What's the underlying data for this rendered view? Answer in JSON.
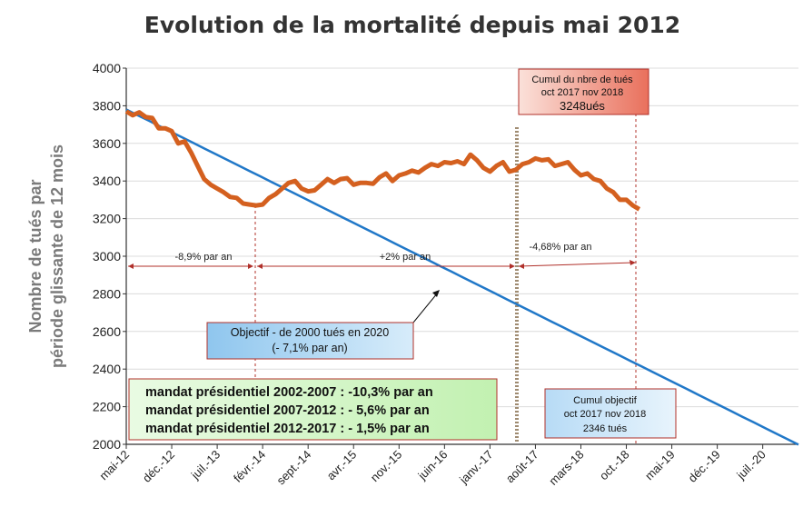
{
  "chart_data": {
    "type": "line",
    "title": "Evolution de la mortalité depuis mai 2012",
    "ylabel_lines": [
      "Nombre de tués par",
      "période  glissante de 12 mois"
    ],
    "xlabel": "",
    "ylim": [
      2000,
      4000
    ],
    "yticks": [
      2000,
      2200,
      2400,
      2600,
      2800,
      3000,
      3200,
      3400,
      3600,
      3800,
      4000
    ],
    "x_tick_labels": [
      "mai-12",
      "déc.-12",
      "juil.-13",
      "févr.-14",
      "sept.-14",
      "avr.-15",
      "nov.-15",
      "juin-16",
      "janv.-17",
      "août-17",
      "mars-18",
      "oct.-18",
      "mai-19",
      "déc.-19",
      "juil.-20"
    ],
    "grid": true,
    "colors": {
      "actual": "#d4601f",
      "objective": "#2178c8",
      "divider": "#a08c72",
      "marker": "#b0302a"
    },
    "series": [
      {
        "key": "actual",
        "start": "mai-12",
        "values": [
          3770,
          3750,
          3765,
          3740,
          3735,
          3680,
          3680,
          3665,
          3600,
          3610,
          3550,
          3480,
          3410,
          3380,
          3360,
          3340,
          3315,
          3310,
          3280,
          3275,
          3270,
          3275,
          3310,
          3330,
          3360,
          3390,
          3400,
          3360,
          3345,
          3350,
          3380,
          3410,
          3390,
          3410,
          3415,
          3380,
          3390,
          3390,
          3385,
          3420,
          3440,
          3400,
          3430,
          3440,
          3455,
          3445,
          3470,
          3490,
          3480,
          3500,
          3495,
          3505,
          3490,
          3540,
          3510,
          3470,
          3450,
          3480,
          3500,
          3450,
          3460,
          3490,
          3500,
          3520,
          3510,
          3515,
          3480,
          3490,
          3500,
          3460,
          3430,
          3440,
          3410,
          3400,
          3360,
          3340,
          3300,
          3300,
          3270,
          3250
        ]
      },
      {
        "key": "objective",
        "start": "mai-12",
        "values": [
          3780,
          1998
        ],
        "end": "déc.-20"
      }
    ],
    "annotations": {
      "pct1": "-8,9% par an",
      "pct2": "+2% par an",
      "pct3": "-4,68% par an",
      "objectif_line1": "Objectif - de 2000 tués en 2020",
      "objectif_line2": "(- 7,1% par an)",
      "cumul_real_line1": "Cumul du nbre de tués",
      "cumul_real_line2": "oct 2017 nov 2018",
      "cumul_real_line3": "3248ués",
      "cumul_obj_line1": "Cumul objectif",
      "cumul_obj_line2": "oct 2017 nov 2018",
      "cumul_obj_line3": "2346 tués",
      "mandat1": "mandat présidentiel 2002-2007 : -10,3% par an",
      "mandat2": "mandat présidentiel 2007-2012 : - 5,6% par an",
      "mandat3": "mandat présidentiel 2012-2017 : - 1,5% par an"
    }
  }
}
